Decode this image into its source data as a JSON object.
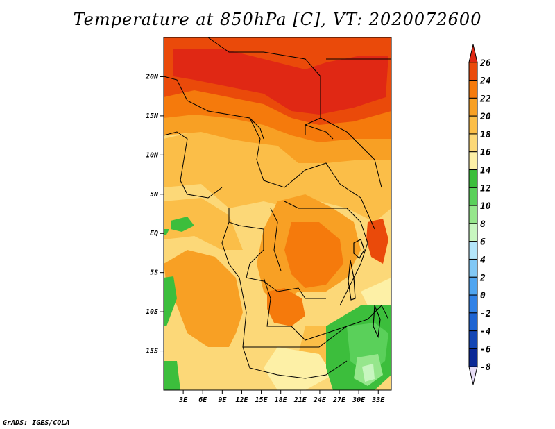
{
  "title": "Temperature at 850hPa [C], VT: 2020072600",
  "credit": "GrADS: IGES/COLA",
  "map": {
    "lon_range": [
      0,
      35
    ],
    "lat_range": [
      -20,
      25
    ],
    "lat_ticks": [
      {
        "value": 20,
        "label": "20N"
      },
      {
        "value": 15,
        "label": "15N"
      },
      {
        "value": 10,
        "label": "10N"
      },
      {
        "value": 5,
        "label": "5N"
      },
      {
        "value": 0,
        "label": "EQ"
      },
      {
        "value": -5,
        "label": "5S"
      },
      {
        "value": -10,
        "label": "10S"
      },
      {
        "value": -15,
        "label": "15S"
      }
    ],
    "lon_ticks": [
      {
        "value": 3,
        "label": "3E"
      },
      {
        "value": 6,
        "label": "6E"
      },
      {
        "value": 9,
        "label": "9E"
      },
      {
        "value": 12,
        "label": "12E"
      },
      {
        "value": 15,
        "label": "15E"
      },
      {
        "value": 18,
        "label": "18E"
      },
      {
        "value": 21,
        "label": "21E"
      },
      {
        "value": 24,
        "label": "24E"
      },
      {
        "value": 27,
        "label": "27E"
      },
      {
        "value": 30,
        "label": "30E"
      },
      {
        "value": 33,
        "label": "33E"
      }
    ]
  },
  "colorbar": {
    "levels": [
      {
        "label": "26",
        "color": "#e02814"
      },
      {
        "label": "24",
        "color": "#ea4a0a"
      },
      {
        "label": "22",
        "color": "#f57a0c"
      },
      {
        "label": "20",
        "color": "#f8a024"
      },
      {
        "label": "18",
        "color": "#fbbe48"
      },
      {
        "label": "16",
        "color": "#fcd878"
      },
      {
        "label": "14",
        "color": "#fdf0a6"
      },
      {
        "label": "12",
        "color": "#3cbe3c"
      },
      {
        "label": "10",
        "color": "#5ad05a"
      },
      {
        "label": "8",
        "color": "#96e68c"
      },
      {
        "label": "6",
        "color": "#c8f6c0"
      },
      {
        "label": "4",
        "color": "#b4e6fa"
      },
      {
        "label": "2",
        "color": "#82c8f5"
      },
      {
        "label": "0",
        "color": "#50a5f0"
      },
      {
        "label": "-2",
        "color": "#3282e6"
      },
      {
        "label": "-4",
        "color": "#1e64d2"
      },
      {
        "label": "-6",
        "color": "#1446b4"
      },
      {
        "label": "-8",
        "color": "#0a2896"
      }
    ],
    "under_color": "#e6dcf5"
  },
  "regions_colors": {
    "c26": "#e02814",
    "c24": "#ea4a0a",
    "c22": "#f57a0c",
    "c20": "#f8a024",
    "c18": "#fbbe48",
    "c16": "#fcd878",
    "c14": "#fdf0a6",
    "c12": "#3cbe3c",
    "c10": "#5ad05a",
    "c8": "#96e68c",
    "c6": "#c8f6c0"
  }
}
